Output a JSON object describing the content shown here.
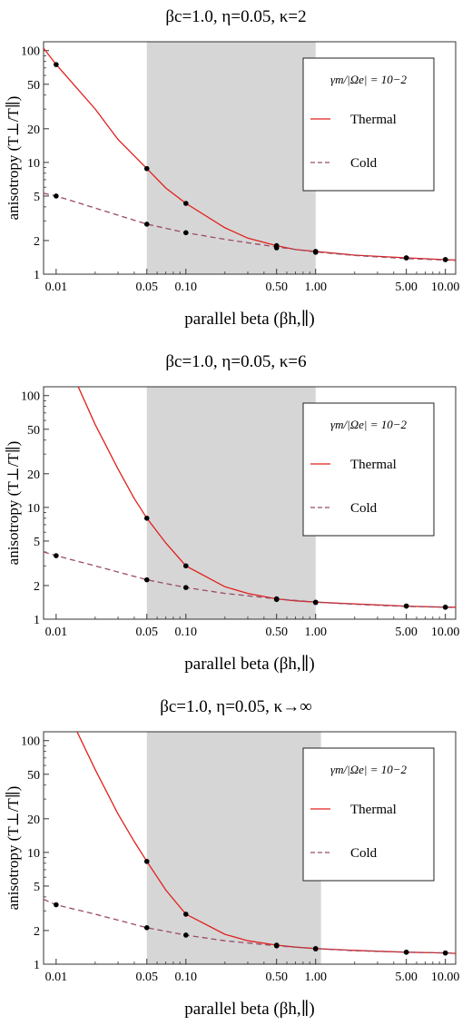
{
  "chart_data": [
    {
      "type": "line",
      "title": "βc=1.0, η=0.05, κ=2",
      "xlabel": "parallel beta (βh,∥)",
      "ylabel": "anisotropy (T⊥/T∥)",
      "x_scale": "log",
      "y_scale": "log",
      "xlim": [
        0.008,
        12
      ],
      "ylim": [
        1,
        120
      ],
      "x_ticks": [
        0.01,
        0.05,
        0.1,
        0.5,
        1.0,
        5.0,
        10.0
      ],
      "x_tick_labels": [
        "0.01",
        "0.05",
        "0.10",
        "0.50",
        "1.00",
        "5.00",
        "10.00"
      ],
      "y_ticks": [
        1,
        2,
        5,
        10,
        20,
        50,
        100
      ],
      "y_tick_labels": [
        "1",
        "2",
        "5",
        "10",
        "20",
        "50",
        "100"
      ],
      "shaded_region": [
        0.05,
        1.0
      ],
      "legend_title": "γm/|Ωe| = 10−2",
      "legend_position": "top-right",
      "series": [
        {
          "name": "Thermal",
          "style": "solid",
          "color": "#e0201b",
          "x": [
            0.008,
            0.01,
            0.02,
            0.03,
            0.05,
            0.07,
            0.1,
            0.2,
            0.3,
            0.5,
            0.7,
            1.0,
            2.0,
            5.0,
            10.0,
            12.0
          ],
          "y": [
            105,
            75,
            30,
            16,
            8.8,
            5.9,
            4.3,
            2.6,
            2.1,
            1.8,
            1.66,
            1.6,
            1.48,
            1.4,
            1.35,
            1.34
          ]
        },
        {
          "name": "Cold",
          "style": "dashed",
          "color": "#9a4a66",
          "x": [
            0.008,
            0.01,
            0.02,
            0.05,
            0.1,
            0.2,
            0.5,
            1.0,
            2.0,
            5.0,
            10.0,
            12.0
          ],
          "y": [
            5.3,
            5.0,
            3.9,
            2.8,
            2.35,
            2.05,
            1.75,
            1.58,
            1.47,
            1.38,
            1.34,
            1.33
          ]
        }
      ],
      "points": {
        "thermal": [
          [
            0.01,
            75
          ],
          [
            0.05,
            8.8
          ],
          [
            0.1,
            4.3
          ],
          [
            0.5,
            1.8
          ],
          [
            1.0,
            1.6
          ],
          [
            5.0,
            1.4
          ],
          [
            10.0,
            1.35
          ]
        ],
        "cold": [
          [
            0.01,
            5.0
          ],
          [
            0.05,
            2.8
          ],
          [
            0.1,
            2.35
          ],
          [
            0.5,
            1.72
          ],
          [
            1.0,
            1.57
          ],
          [
            5.0,
            1.4
          ],
          [
            10.0,
            1.35
          ]
        ]
      }
    },
    {
      "type": "line",
      "title": "βc=1.0, η=0.05, κ=6",
      "xlabel": "parallel beta (βh,∥)",
      "ylabel": "anisotropy (T⊥/T∥)",
      "x_scale": "log",
      "y_scale": "log",
      "xlim": [
        0.008,
        12
      ],
      "ylim": [
        1,
        120
      ],
      "x_ticks": [
        0.01,
        0.05,
        0.1,
        0.5,
        1.0,
        5.0,
        10.0
      ],
      "x_tick_labels": [
        "0.01",
        "0.05",
        "0.10",
        "0.50",
        "1.00",
        "5.00",
        "10.00"
      ],
      "y_ticks": [
        1,
        2,
        5,
        10,
        20,
        50,
        100
      ],
      "y_tick_labels": [
        "1",
        "2",
        "5",
        "10",
        "20",
        "50",
        "100"
      ],
      "shaded_region": [
        0.05,
        1.0
      ],
      "legend_title": "γm/|Ωe| = 10−2",
      "legend_position": "top-right",
      "series": [
        {
          "name": "Thermal",
          "style": "solid",
          "color": "#e0201b",
          "x": [
            0.0148,
            0.02,
            0.03,
            0.04,
            0.05,
            0.07,
            0.1,
            0.2,
            0.3,
            0.5,
            0.7,
            1.0,
            2.0,
            5.0,
            10.0,
            12.0
          ],
          "y": [
            120,
            55,
            22,
            12,
            8.0,
            4.8,
            3.0,
            1.95,
            1.7,
            1.52,
            1.46,
            1.42,
            1.37,
            1.31,
            1.28,
            1.28
          ]
        },
        {
          "name": "Cold",
          "style": "dashed",
          "color": "#9a4a66",
          "x": [
            0.008,
            0.01,
            0.02,
            0.05,
            0.1,
            0.2,
            0.5,
            1.0,
            2.0,
            5.0,
            10.0,
            12.0
          ],
          "y": [
            4.0,
            3.7,
            3.0,
            2.25,
            1.92,
            1.7,
            1.52,
            1.42,
            1.36,
            1.3,
            1.28,
            1.27
          ]
        }
      ],
      "points": {
        "thermal": [
          [
            0.05,
            8.0
          ],
          [
            0.1,
            3.0
          ],
          [
            0.5,
            1.52
          ],
          [
            1.0,
            1.42
          ],
          [
            5.0,
            1.31
          ],
          [
            10.0,
            1.28
          ]
        ],
        "cold": [
          [
            0.01,
            3.7
          ],
          [
            0.05,
            2.25
          ],
          [
            0.1,
            1.92
          ],
          [
            0.5,
            1.5
          ],
          [
            1.0,
            1.41
          ],
          [
            5.0,
            1.31
          ],
          [
            10.0,
            1.28
          ]
        ]
      }
    },
    {
      "type": "line",
      "title": "βc=1.0, η=0.05, κ→∞",
      "xlabel": "parallel beta (βh,∥)",
      "ylabel": "anisotropy (T⊥/T∥)",
      "x_scale": "log",
      "y_scale": "log",
      "xlim": [
        0.008,
        12
      ],
      "ylim": [
        1,
        120
      ],
      "x_ticks": [
        0.01,
        0.05,
        0.1,
        0.5,
        1.0,
        5.0,
        10.0
      ],
      "x_tick_labels": [
        "0.01",
        "0.05",
        "0.10",
        "0.50",
        "1.00",
        "5.00",
        "10.00"
      ],
      "y_ticks": [
        1,
        2,
        5,
        10,
        20,
        50,
        100
      ],
      "y_tick_labels": [
        "1",
        "2",
        "5",
        "10",
        "20",
        "50",
        "100"
      ],
      "shaded_region": [
        0.05,
        1.1
      ],
      "legend_title": "γm/|Ωe| = 10−2",
      "legend_position": "top-right",
      "series": [
        {
          "name": "Thermal",
          "style": "solid",
          "color": "#e0201b",
          "x": [
            0.0145,
            0.02,
            0.03,
            0.04,
            0.05,
            0.07,
            0.1,
            0.2,
            0.3,
            0.5,
            0.7,
            1.0,
            2.0,
            5.0,
            10.0,
            12.0
          ],
          "y": [
            120,
            55,
            22,
            12.5,
            8.3,
            4.6,
            2.8,
            1.85,
            1.62,
            1.48,
            1.42,
            1.38,
            1.33,
            1.28,
            1.26,
            1.25
          ]
        },
        {
          "name": "Cold",
          "style": "dashed",
          "color": "#9a4a66",
          "x": [
            0.008,
            0.01,
            0.02,
            0.05,
            0.1,
            0.2,
            0.5,
            1.0,
            2.0,
            5.0,
            10.0,
            12.0
          ],
          "y": [
            3.8,
            3.4,
            2.8,
            2.12,
            1.82,
            1.62,
            1.46,
            1.38,
            1.32,
            1.28,
            1.26,
            1.25
          ]
        }
      ],
      "points": {
        "thermal": [
          [
            0.05,
            8.3
          ],
          [
            0.1,
            2.8
          ],
          [
            0.5,
            1.48
          ],
          [
            1.0,
            1.38
          ],
          [
            5.0,
            1.28
          ],
          [
            10.0,
            1.26
          ]
        ],
        "cold": [
          [
            0.01,
            3.4
          ],
          [
            0.05,
            2.12
          ],
          [
            0.1,
            1.82
          ],
          [
            0.5,
            1.46
          ],
          [
            1.0,
            1.37
          ],
          [
            5.0,
            1.28
          ],
          [
            10.0,
            1.26
          ]
        ]
      }
    }
  ]
}
